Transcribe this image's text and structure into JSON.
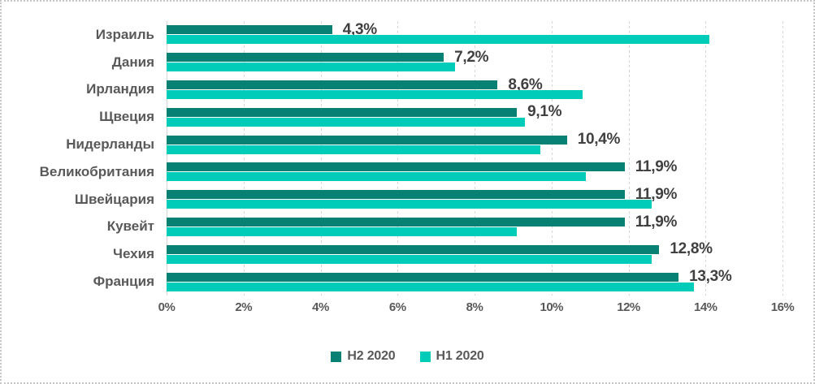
{
  "chart_data": {
    "type": "bar",
    "orientation": "horizontal",
    "title": "",
    "categories": [
      "Израиль",
      "Дания",
      "Ирландия",
      "Щвеция",
      "Нидерланды",
      "Великобритания",
      "Швейцария",
      "Кувейт",
      "Чехия",
      "Франция"
    ],
    "series": [
      {
        "name": "H2 2020",
        "color": "#068174",
        "values": [
          4.3,
          7.2,
          8.6,
          9.1,
          10.4,
          11.9,
          11.9,
          11.9,
          12.8,
          13.3
        ],
        "data_labels": [
          "4,3%",
          "7,2%",
          "8,6%",
          "9,1%",
          "10,4%",
          "11,9%",
          "11,9%",
          "11,9%",
          "12,8%",
          "13,3%"
        ]
      },
      {
        "name": "H1 2020",
        "color": "#00CCB9",
        "values": [
          14.1,
          7.5,
          10.8,
          9.3,
          9.7,
          10.9,
          12.6,
          9.1,
          12.6,
          13.7
        ]
      }
    ],
    "x_axis": {
      "min": 0,
      "max": 16,
      "step": 2,
      "ticks": [
        "0%",
        "2%",
        "4%",
        "6%",
        "8%",
        "10%",
        "12%",
        "14%",
        "16%"
      ]
    },
    "grid": "vertical-dashed",
    "legend_position": "bottom-center",
    "colors": {
      "h2_2020": "#068174",
      "h1_2020": "#00CCB9",
      "gridline": "#D6D6D6",
      "axis_text": "#595959",
      "data_label_text": "#404040",
      "border": "#C6C6C6"
    }
  }
}
